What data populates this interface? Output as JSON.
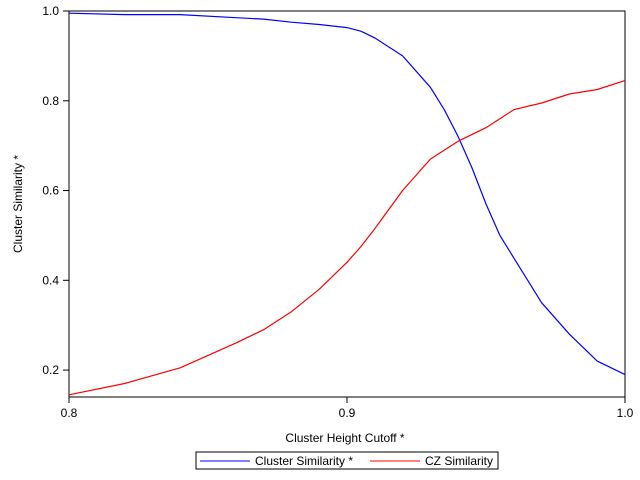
{
  "chart_data": {
    "type": "line",
    "xlabel": "Cluster Height Cutoff   *",
    "ylabel": "Cluster Similarity   *",
    "xlim": [
      0.8,
      1.0
    ],
    "ylim": [
      0.14,
      1.0
    ],
    "xticks": [
      0.8,
      0.9,
      1.0
    ],
    "xtick_labels": [
      "0.8",
      "0.9",
      "1.0"
    ],
    "yticks": [
      0.2,
      0.4,
      0.6,
      0.8,
      1.0
    ],
    "ytick_labels": [
      "0.2",
      "0.4",
      "0.6",
      "0.8",
      "1.0"
    ],
    "grid": false,
    "legend_position": "bottom-center",
    "x": [
      0.8,
      0.82,
      0.84,
      0.86,
      0.87,
      0.88,
      0.89,
      0.9,
      0.905,
      0.91,
      0.92,
      0.93,
      0.935,
      0.94,
      0.945,
      0.95,
      0.955,
      0.96,
      0.97,
      0.98,
      0.99,
      1.0
    ],
    "series": [
      {
        "name": "Cluster Similarity   *",
        "color": "#0000ff",
        "values": [
          0.995,
          0.992,
          0.992,
          0.985,
          0.982,
          0.975,
          0.97,
          0.963,
          0.955,
          0.94,
          0.9,
          0.83,
          0.78,
          0.72,
          0.65,
          0.57,
          0.5,
          0.45,
          0.35,
          0.28,
          0.22,
          0.19
        ]
      },
      {
        "name": "CZ Similarity",
        "color": "#ff0000",
        "values": [
          0.145,
          0.17,
          0.205,
          0.26,
          0.29,
          0.33,
          0.38,
          0.44,
          0.475,
          0.515,
          0.6,
          0.67,
          0.69,
          0.71,
          0.725,
          0.74,
          0.76,
          0.78,
          0.795,
          0.815,
          0.825,
          0.845
        ]
      }
    ]
  }
}
